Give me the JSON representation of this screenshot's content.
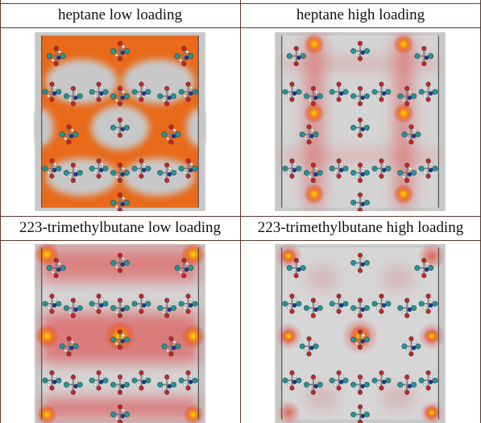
{
  "table": {
    "rows": [
      [
        "heptane low loading",
        "heptane high loading"
      ],
      [
        "223-trimethylbutane low loading",
        "223-trimethylbutane high loading"
      ]
    ]
  }
}
